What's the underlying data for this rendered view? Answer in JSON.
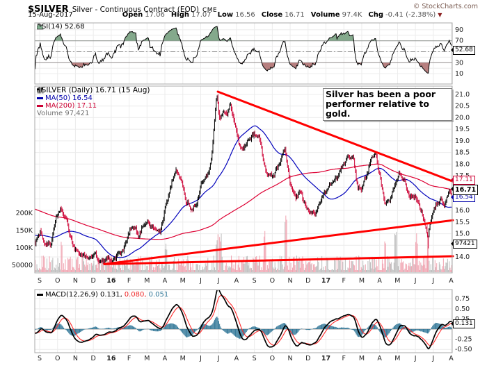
{
  "header": {
    "symbol": "$SILVER",
    "description": "Silver - Continuous Contract (EOD)",
    "exchange": "CME",
    "copyright": "© StockCharts.com",
    "date": "15-Aug-2017",
    "quote": [
      {
        "l": "Open",
        "v": "17.06"
      },
      {
        "l": "High",
        "v": "17.07"
      },
      {
        "l": "Low",
        "v": "16.56"
      },
      {
        "l": "Close",
        "v": "16.71"
      },
      {
        "l": "Volume",
        "v": "97.4K"
      },
      {
        "l": "Chg",
        "v": "-0.41 (-2.38%)"
      }
    ],
    "change_arrow": "▼"
  },
  "rsi_panel": {
    "legend": "RSI(14) 52.68",
    "callout": "52.68"
  },
  "main_panel": {
    "legend_symbol": "$SILVER (Daily) 16.71 (15 Aug)",
    "legend_ma50": "MA(50) 16.54",
    "legend_ma200": "MA(200) 17.11",
    "legend_volume": "Volume 97,421",
    "callout_ma200": "17.11",
    "callout_close": "16.71",
    "callout_ma50": "16.54",
    "callout_volume": "97421",
    "vol_ticks": [
      {
        "v": 200000,
        "l": "200K"
      },
      {
        "v": 150000,
        "l": "150K"
      },
      {
        "v": 100000,
        "l": "100K"
      },
      {
        "v": 50000,
        "l": "50000"
      }
    ]
  },
  "macd_panel": {
    "legend_label": "MACD(12,26,9)",
    "legend_macd": "0.131,",
    "legend_signal": "0.080,",
    "legend_hist": "0.051",
    "callout": "0.131"
  },
  "colors": {
    "up": "#000000",
    "down": "#cc0033",
    "ma50": "#0000bb",
    "ma200": "#dd0033",
    "trendline": "#ff0000",
    "vol_up": "#bdbdbd",
    "vol_down": "#f0a3b0",
    "macd": "#000000",
    "signal": "#ff2a2a",
    "histogram": "#2e7596",
    "rsi": "#000000",
    "overbought_fill": "#84a98c",
    "oversold_fill": "#b77f7f",
    "grid": "#ececec",
    "band": "#8c8c8c",
    "frame": "#a8a8a8",
    "axis_text": "#222222"
  },
  "chart_data": [
    {
      "type": "line",
      "panel": "rsi",
      "name": "RSI(14)",
      "current": 52.68,
      "ylim": [
        0,
        100
      ],
      "yticks": [
        90,
        70,
        30,
        10
      ],
      "overbought": 70,
      "oversold": 30,
      "midline": 50
    },
    {
      "type": "candlestick",
      "panel": "price",
      "name": "$SILVER (Daily)",
      "last_close": 16.71,
      "last_date": "15 Aug",
      "ma50": 16.54,
      "ma200": 17.11,
      "volume": 97421,
      "ylim": [
        13.3,
        21.4
      ],
      "yticks": [
        21,
        20.5,
        20,
        19.5,
        19,
        18.5,
        18,
        17.5,
        16,
        15.5,
        15,
        14
      ],
      "x_axis": {
        "labels": [
          "S",
          "O",
          "N",
          "D",
          "16",
          "F",
          "M",
          "A",
          "M",
          "J",
          "J",
          "A",
          "S",
          "O",
          "N",
          "D",
          "17",
          "F",
          "M",
          "A",
          "M",
          "J",
          "J",
          "A"
        ],
        "bold_labels": [
          "16",
          "17"
        ]
      },
      "price_anchors": [
        [
          0,
          14.55
        ],
        [
          0.3,
          15.15
        ],
        [
          0.5,
          14.6
        ],
        [
          0.9,
          14.55
        ],
        [
          1.2,
          15.75
        ],
        [
          1.5,
          16.1
        ],
        [
          1.8,
          15.5
        ],
        [
          2.1,
          14.6
        ],
        [
          2.4,
          14.2
        ],
        [
          2.8,
          14.05
        ],
        [
          3.1,
          13.95
        ],
        [
          3.4,
          14.15
        ],
        [
          3.7,
          13.75
        ],
        [
          3.95,
          13.9
        ],
        [
          4.1,
          13.95
        ],
        [
          4.35,
          13.8
        ],
        [
          4.7,
          14.1
        ],
        [
          5,
          14.25
        ],
        [
          5.3,
          15
        ],
        [
          5.6,
          15.35
        ],
        [
          5.9,
          14.9
        ],
        [
          6.2,
          15.45
        ],
        [
          6.5,
          15.4
        ],
        [
          6.8,
          15.2
        ],
        [
          7.1,
          15.05
        ],
        [
          7.4,
          16.1
        ],
        [
          7.7,
          17
        ],
        [
          8,
          17.75
        ],
        [
          8.3,
          17.3
        ],
        [
          8.6,
          16.4
        ],
        [
          8.9,
          16
        ],
        [
          9.2,
          16.3
        ],
        [
          9.5,
          17.3
        ],
        [
          9.8,
          17.5
        ],
        [
          10.05,
          18.35
        ],
        [
          10.18,
          19.7
        ],
        [
          10.32,
          21.05
        ],
        [
          10.5,
          19.9
        ],
        [
          10.7,
          20.3
        ],
        [
          10.9,
          20.15
        ],
        [
          11.1,
          20.55
        ],
        [
          11.4,
          19.6
        ],
        [
          11.7,
          18.6
        ],
        [
          11.9,
          18.75
        ],
        [
          12.2,
          19.1
        ],
        [
          12.5,
          19.3
        ],
        [
          12.8,
          19.05
        ],
        [
          13.05,
          17.85
        ],
        [
          13.2,
          17.55
        ],
        [
          13.5,
          17.5
        ],
        [
          13.8,
          17.85
        ],
        [
          14.2,
          18.7
        ],
        [
          14.5,
          17.2
        ],
        [
          14.8,
          16.55
        ],
        [
          15.1,
          16.8
        ],
        [
          15.4,
          16.15
        ],
        [
          15.7,
          15.85
        ],
        [
          16,
          15.95
        ],
        [
          16.3,
          16.55
        ],
        [
          16.6,
          16.9
        ],
        [
          16.9,
          17.2
        ],
        [
          17.2,
          17.45
        ],
        [
          17.5,
          17.95
        ],
        [
          17.8,
          18.3
        ],
        [
          18.1,
          18.25
        ],
        [
          18.35,
          17
        ],
        [
          18.55,
          16.95
        ],
        [
          18.8,
          17.4
        ],
        [
          19.1,
          18.2
        ],
        [
          19.35,
          18.45
        ],
        [
          19.6,
          17.55
        ],
        [
          19.9,
          16.25
        ],
        [
          20.2,
          16.5
        ],
        [
          20.5,
          17.2
        ],
        [
          20.7,
          17.55
        ],
        [
          21,
          17.3
        ],
        [
          21.3,
          16.6
        ],
        [
          21.6,
          16.6
        ],
        [
          21.9,
          16.1
        ],
        [
          22.2,
          15.4
        ],
        [
          22.35,
          14.75
        ],
        [
          22.5,
          15.6
        ],
        [
          22.8,
          16.25
        ],
        [
          23.1,
          16.45
        ],
        [
          23.3,
          16.2
        ],
        [
          23.55,
          16.9
        ],
        [
          23.7,
          16.71
        ]
      ],
      "volume_spikes": [
        [
          1.5,
          120000
        ],
        [
          7.45,
          130000
        ],
        [
          10.35,
          155000
        ],
        [
          10.55,
          150000
        ],
        [
          13.07,
          150000
        ],
        [
          14.25,
          225000
        ],
        [
          19.9,
          130000
        ],
        [
          20.5,
          160000
        ],
        [
          21.7,
          150000
        ],
        [
          22.35,
          205000
        ]
      ],
      "trendlines": [
        {
          "t1": 10.39,
          "p1": 21.12,
          "t2": 23.74,
          "p2": 17.25
        },
        {
          "t1": 3.95,
          "p1": 13.69,
          "t2": 23.74,
          "p2": 15.58
        },
        {
          "t1": 3.95,
          "p1": 13.69,
          "t2": 23.74,
          "p2": 14.03
        }
      ],
      "annotation": "Silver has been a poor performer relative to gold."
    },
    {
      "type": "line",
      "panel": "macd",
      "name": "MACD(12,26,9)",
      "macd": 0.131,
      "signal": 0.08,
      "hist": 0.051,
      "ylim": [
        -0.6,
        0.98
      ],
      "yticks": [
        0.75,
        0.5,
        0.25,
        -0.25,
        -0.5
      ]
    }
  ]
}
